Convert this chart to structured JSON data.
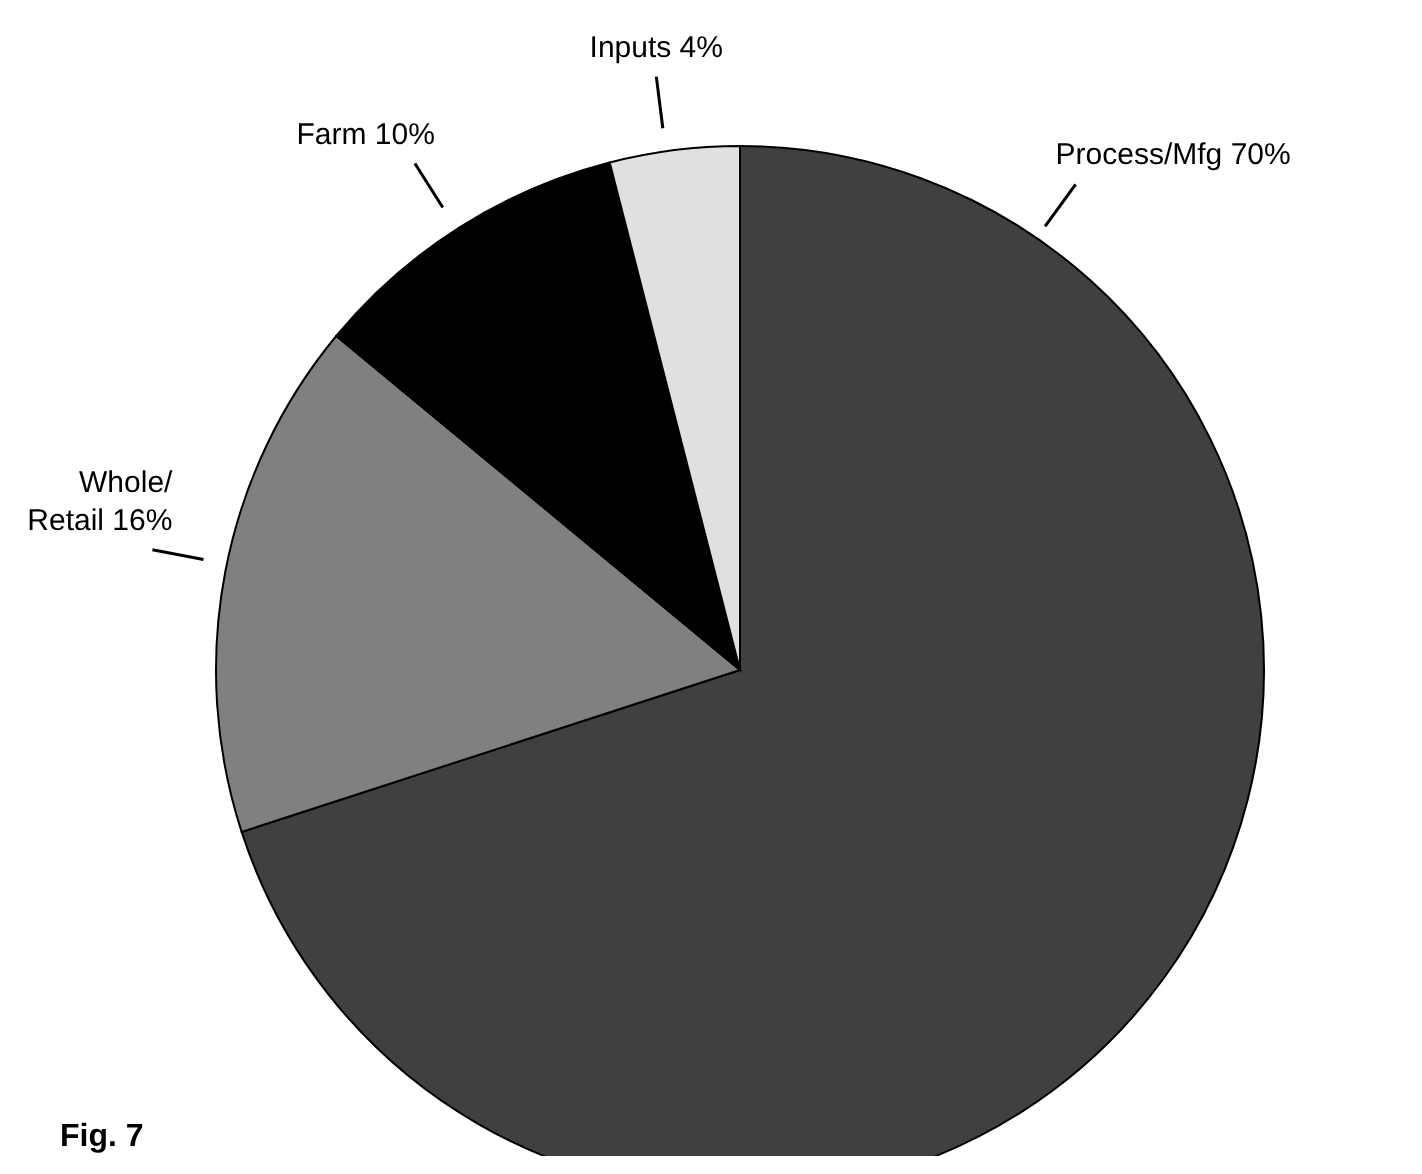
{
  "chart_data": {
    "type": "pie",
    "categories": [
      "Process/Mfg",
      "Whole/Retail",
      "Farm",
      "Inputs"
    ],
    "values": [
      70,
      16,
      10,
      4
    ],
    "value_labels": [
      "70%",
      "16%",
      "10%",
      "4%"
    ],
    "colors": [
      "#404040",
      "#808080",
      "#000000",
      "#e0e0e0"
    ],
    "annotations": [
      "Fig. 7"
    ]
  }
}
